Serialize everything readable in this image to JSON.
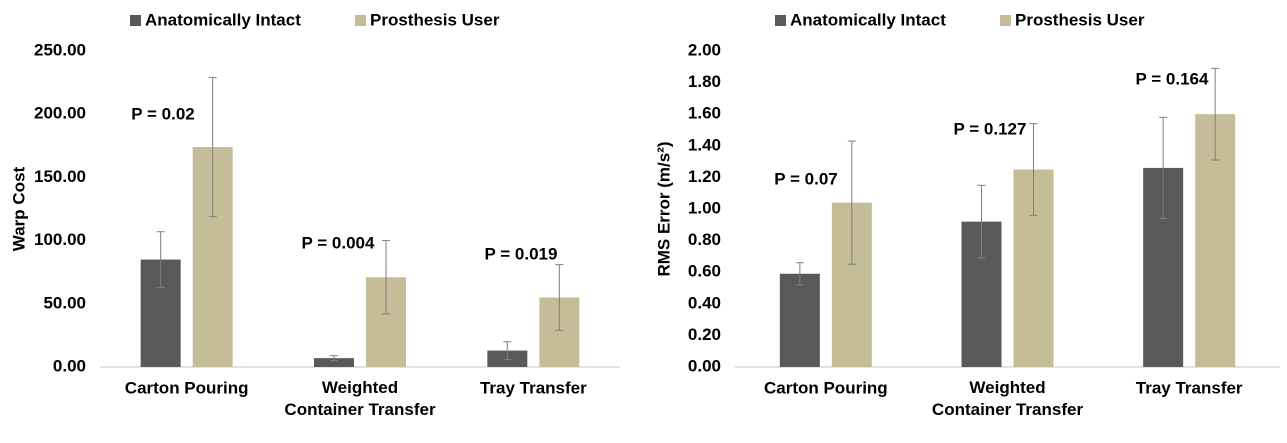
{
  "chart_data": [
    {
      "type": "bar",
      "ylabel": "Warp Cost",
      "categories": [
        "Carton Pouring",
        "Weighted Container Transfer",
        "Tray Transfer"
      ],
      "series": [
        {
          "name": "Anatomically Intact",
          "color": "#595959",
          "values": [
            85,
            7,
            13
          ],
          "errors": [
            22,
            2,
            7
          ]
        },
        {
          "name": "Prosthesis User",
          "color": "#c4bd97",
          "values": [
            174,
            71,
            55
          ],
          "errors": [
            55,
            29,
            26
          ]
        }
      ],
      "ylim": [
        0,
        250
      ],
      "yticks": [
        {
          "value": 0,
          "label": "0.00"
        },
        {
          "value": 50,
          "label": "50.00"
        },
        {
          "value": 100,
          "label": "100.00"
        },
        {
          "value": 150,
          "label": "150.00"
        },
        {
          "value": 200,
          "label": "200.00"
        },
        {
          "value": 250,
          "label": "250.00"
        }
      ],
      "annotations": [
        "P = 0.02",
        "P = 0.004",
        "P = 0.019"
      ]
    },
    {
      "type": "bar",
      "ylabel": "RMS Error (m/s²)",
      "categories": [
        "Carton Pouring",
        "Weighted Container Transfer",
        "Tray Transfer"
      ],
      "series": [
        {
          "name": "Anatomically Intact",
          "color": "#595959",
          "values": [
            0.59,
            0.92,
            1.26
          ],
          "errors": [
            0.07,
            0.23,
            0.32
          ]
        },
        {
          "name": "Prosthesis User",
          "color": "#c4bd97",
          "values": [
            1.04,
            1.25,
            1.6
          ],
          "errors": [
            0.39,
            0.29,
            0.29
          ]
        }
      ],
      "ylim": [
        0,
        2
      ],
      "yticks": [
        {
          "value": 0,
          "label": "0.00"
        },
        {
          "value": 0.2,
          "label": "0.20"
        },
        {
          "value": 0.4,
          "label": "0.40"
        },
        {
          "value": 0.6,
          "label": "0.60"
        },
        {
          "value": 0.8,
          "label": "0.80"
        },
        {
          "value": 1,
          "label": "1.00"
        },
        {
          "value": 1.2,
          "label": "1.20"
        },
        {
          "value": 1.4,
          "label": "1.40"
        },
        {
          "value": 1.6,
          "label": "1.60"
        },
        {
          "value": 1.8,
          "label": "1.80"
        },
        {
          "value": 2,
          "label": "2.00"
        }
      ],
      "annotations": [
        "P = 0.07",
        "P = 0.127",
        "P = 0.164"
      ]
    }
  ]
}
